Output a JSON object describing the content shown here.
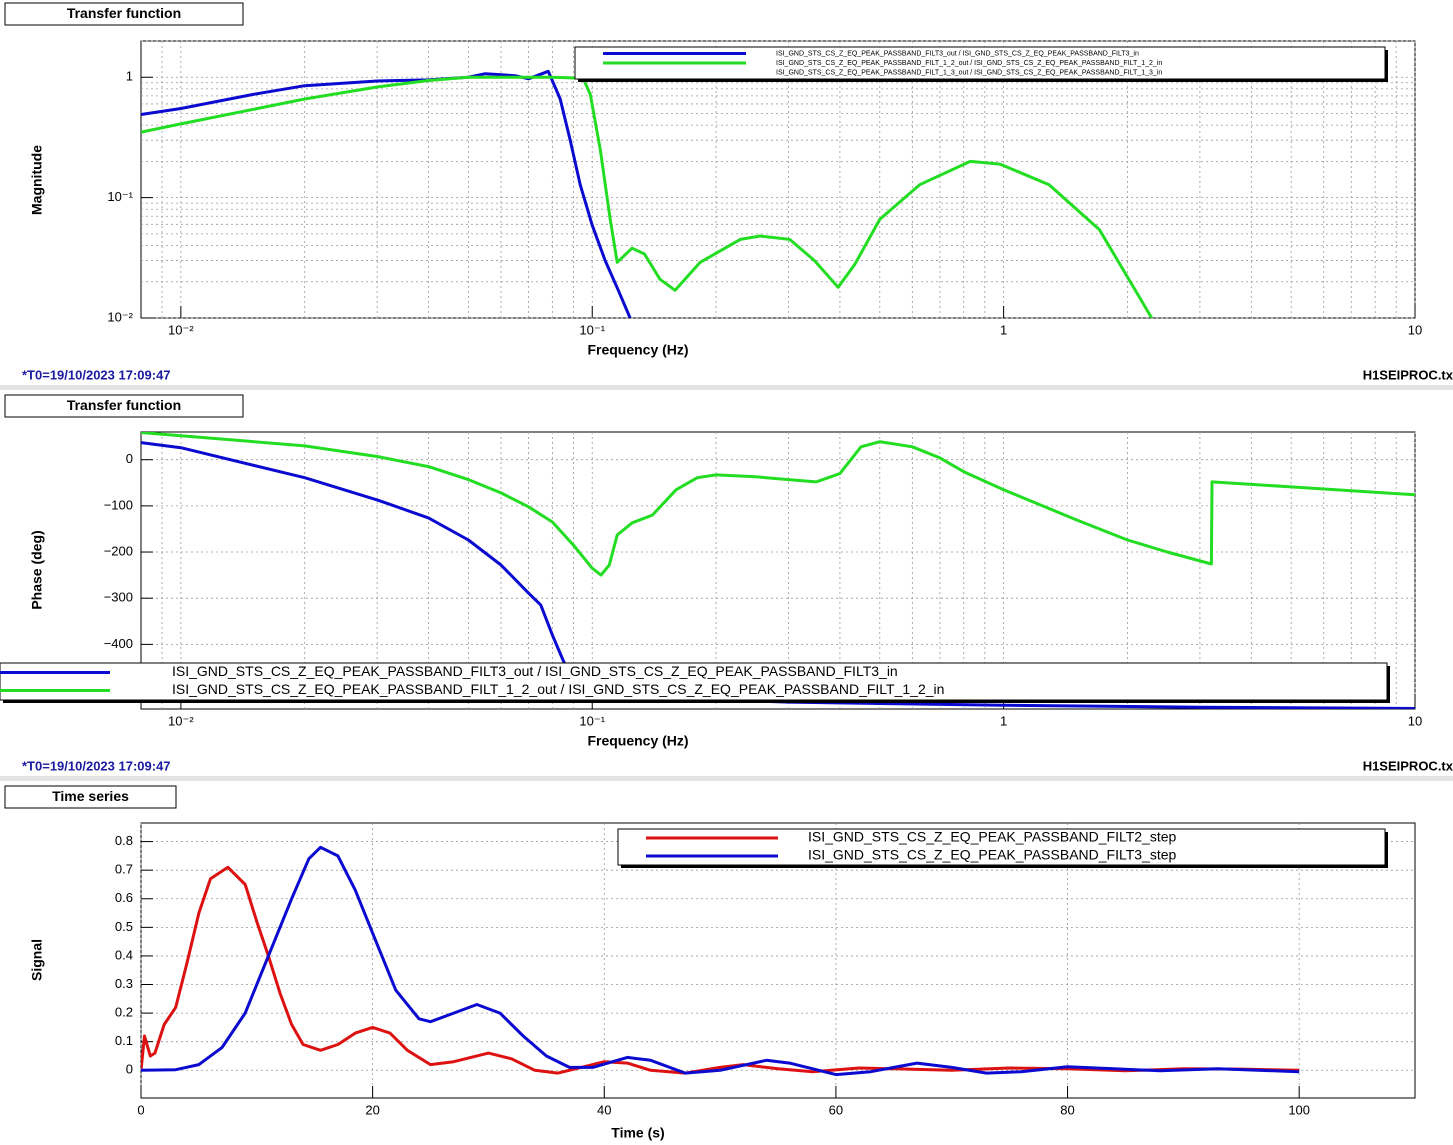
{
  "chart_data": [
    {
      "type": "line",
      "title": "Transfer function",
      "xlabel": "Frequency (Hz)",
      "ylabel": "Magnitude",
      "xscale": "log",
      "yscale": "log",
      "grid": true,
      "legend": "top-right",
      "footer_left": "*T0=19/10/2023 17:09:47",
      "footer_right": "H1SEIPROC.tx",
      "xlim": [
        0.008,
        10
      ],
      "ylim": [
        0.01,
        2
      ],
      "xticks": [
        {
          "value": 0.01,
          "label": "10⁻²"
        },
        {
          "value": 0.1,
          "label": "10⁻¹"
        },
        1,
        10
      ],
      "yticks": [
        {
          "value": 0.01,
          "label": "10⁻²"
        },
        {
          "value": 0.1,
          "label": "10⁻¹"
        },
        1
      ],
      "xminorticks": [
        0.009,
        0.02,
        0.03,
        0.04,
        0.05,
        0.06,
        0.07,
        0.08,
        0.09,
        0.2,
        0.3,
        0.4,
        0.5,
        0.6,
        0.7,
        0.8,
        0.9,
        2,
        3,
        4,
        5,
        6,
        7,
        8,
        9
      ],
      "yminorticks": [
        0.02,
        0.03,
        0.04,
        0.05,
        0.06,
        0.07,
        0.08,
        0.09,
        0.2,
        0.3,
        0.4,
        0.5,
        0.6,
        0.7,
        0.8,
        0.9,
        2
      ],
      "series": [
        {
          "name": "ISI_GND_STS_CS_Z_EQ_PEAK_PASSBAND_FILT3_out / ISI_GND_STS_CS_Z_EQ_PEAK_PASSBAND_FILT3_in",
          "color": "#0a0ad0",
          "x": [
            0.008,
            0.01,
            0.015,
            0.02,
            0.03,
            0.04,
            0.05,
            0.055,
            0.065,
            0.07,
            0.0782,
            0.0836,
            0.0884,
            0.0935,
            0.1,
            0.1075,
            0.1157,
            0.1236
          ],
          "values": [
            0.49,
            0.55,
            0.72,
            0.85,
            0.93,
            0.95,
            1.0,
            1.07,
            1.03,
            0.97,
            1.12,
            0.66,
            0.3,
            0.128,
            0.059,
            0.03,
            0.017,
            0.01
          ]
        },
        {
          "name": "ISI_GND_STS_CS_Z_EQ_PEAK_PASSBAND_FILT_1_2_out / ISI_GND_STS_CS_Z_EQ_PEAK_PASSBAND_FILT_1_2_in",
          "color": "#22dd22",
          "x": [
            0.008,
            0.01,
            0.02,
            0.03,
            0.04,
            0.05,
            0.08,
            0.095,
            0.0989,
            0.1046,
            0.1106,
            0.115,
            0.125,
            0.134,
            0.146,
            0.159,
            0.183,
            0.229,
            0.256,
            0.302,
            0.347,
            0.396,
            0.435,
            0.5,
            0.625,
            0.83,
            0.98,
            1.29,
            1.71,
            2.29
          ],
          "values": [
            0.35,
            0.41,
            0.66,
            0.83,
            0.94,
            1.0,
            1.0,
            0.98,
            0.72,
            0.25,
            0.066,
            0.029,
            0.038,
            0.034,
            0.021,
            0.017,
            0.029,
            0.045,
            0.048,
            0.045,
            0.03,
            0.018,
            0.028,
            0.066,
            0.128,
            0.2,
            0.19,
            0.128,
            0.054,
            0.01
          ]
        },
        {
          "name": "ISI_GND_STS_CS_Z_EQ_PEAK_PASSBAND_FILT_1_3_out / ISI_GND_STS_CS_Z_EQ_PEAK_PASSBAND_FILT_1_3_in",
          "color": "#ffffff",
          "x": [],
          "values": []
        }
      ]
    },
    {
      "type": "line",
      "title": "Transfer function",
      "xlabel": "Frequency (Hz)",
      "ylabel": "Phase (deg)",
      "xscale": "log",
      "yscale": "linear",
      "grid": true,
      "legend": "bottom",
      "footer_left": "*T0=19/10/2023 17:09:47",
      "footer_right": "H1SEIPROC.tx",
      "xlim": [
        0.008,
        10
      ],
      "ylim": [
        -540,
        60
      ],
      "xticks": [
        {
          "value": 0.01,
          "label": "10⁻²"
        },
        {
          "value": 0.1,
          "label": "10⁻¹"
        },
        1,
        10
      ],
      "yticks": [
        0,
        {
          "value": -100,
          "label": "−100"
        },
        {
          "value": -200,
          "label": "−200"
        },
        {
          "value": -300,
          "label": "−300"
        },
        {
          "value": -400,
          "label": "−400"
        }
      ],
      "xminorticks": [
        0.009,
        0.02,
        0.03,
        0.04,
        0.05,
        0.06,
        0.07,
        0.08,
        0.09,
        0.2,
        0.3,
        0.4,
        0.5,
        0.6,
        0.7,
        0.8,
        0.9,
        2,
        3,
        4,
        5,
        6,
        7,
        8,
        9
      ],
      "series": [
        {
          "name": "ISI_GND_STS_CS_Z_EQ_PEAK_PASSBAND_FILT3_out / ISI_GND_STS_CS_Z_EQ_PEAK_PASSBAND_FILT3_in",
          "color": "#0a0ad0",
          "x": [
            0.008,
            0.01,
            0.02,
            0.03,
            0.04,
            0.05,
            0.06,
            0.07,
            0.075,
            0.08,
            0.085,
            0.09,
            0.1,
            0.3,
            0.5,
            1,
            3,
            10
          ],
          "values": [
            37,
            26,
            -39,
            -87,
            -126,
            -174,
            -228,
            -289,
            -315,
            -380,
            -435,
            -478,
            -511,
            -525,
            -528,
            -532,
            -536,
            -539
          ]
        },
        {
          "name": "ISI_GND_STS_CS_Z_EQ_PEAK_PASSBAND_FILT_1_2_out / ISI_GND_STS_CS_Z_EQ_PEAK_PASSBAND_FILT_1_2_in",
          "color": "#22dd22",
          "x": [
            0.008,
            0.01,
            0.02,
            0.03,
            0.04,
            0.05,
            0.06,
            0.07,
            0.08,
            0.09,
            0.1,
            0.105,
            0.11,
            0.115,
            0.125,
            0.14,
            0.16,
            0.18,
            0.2,
            0.25,
            0.3,
            0.35,
            0.4,
            0.45,
            0.5,
            0.6,
            0.7,
            0.8,
            1,
            1.5,
            2,
            2.5,
            3.2,
            3.21,
            5,
            10
          ],
          "values": [
            59,
            52,
            30,
            7,
            -15,
            -43,
            -72,
            -102,
            -135,
            -185,
            -235,
            -250,
            -228,
            -163,
            -137,
            -120,
            -65,
            -39,
            -33,
            -37,
            -43,
            -48,
            -30,
            28,
            39,
            28,
            4,
            -26,
            -65,
            -130,
            -174,
            -200,
            -226,
            -48,
            -59,
            -76
          ]
        }
      ]
    },
    {
      "type": "line",
      "title": "Time series",
      "xlabel": "Time (s)",
      "ylabel": "Signal",
      "xscale": "linear",
      "yscale": "linear",
      "grid": true,
      "legend": "top-right",
      "xlim": [
        0,
        110
      ],
      "ylim": [
        -0.097,
        0.865
      ],
      "xticks": [
        0,
        20,
        40,
        60,
        80,
        100
      ],
      "yticks": [
        0,
        0.1,
        0.2,
        0.3,
        0.4,
        0.5,
        0.6,
        0.7,
        0.8
      ],
      "series": [
        {
          "name": "ISI_GND_STS_CS_Z_EQ_PEAK_PASSBAND_FILT2_step",
          "color": "#dd1111",
          "x": [
            0,
            0.3,
            0.8,
            1.2,
            2,
            3,
            4,
            5,
            6,
            7.5,
            9,
            10,
            11,
            12,
            13,
            14,
            15.5,
            17,
            18.5,
            20,
            21.5,
            23,
            25,
            27,
            30,
            32,
            34,
            36,
            38,
            40,
            42,
            44,
            47,
            50,
            52,
            55,
            58,
            62,
            65,
            70,
            75,
            80,
            85,
            90,
            95,
            100
          ],
          "values": [
            0,
            0.12,
            0.05,
            0.06,
            0.16,
            0.22,
            0.38,
            0.55,
            0.67,
            0.71,
            0.65,
            0.52,
            0.4,
            0.27,
            0.16,
            0.09,
            0.07,
            0.09,
            0.13,
            0.15,
            0.13,
            0.07,
            0.02,
            0.03,
            0.06,
            0.04,
            0.0,
            -0.01,
            0.01,
            0.03,
            0.025,
            0.0,
            -0.01,
            0.01,
            0.02,
            0.005,
            -0.005,
            0.008,
            0.005,
            0.0,
            0.008,
            0.005,
            -0.002,
            0.005,
            0.004,
            0.0
          ]
        },
        {
          "name": "ISI_GND_STS_CS_Z_EQ_PEAK_PASSBAND_FILT3_step",
          "color": "#0a0ad0",
          "x": [
            0,
            3,
            5,
            7,
            9,
            11,
            13,
            14.5,
            15.5,
            17,
            18.5,
            20,
            22,
            24,
            25,
            27,
            29,
            31,
            33,
            35,
            37,
            39,
            42,
            44,
            47,
            50,
            54,
            56,
            60,
            63,
            67,
            70,
            73,
            76,
            80,
            84,
            88,
            93,
            100
          ],
          "values": [
            0,
            0.002,
            0.02,
            0.08,
            0.2,
            0.4,
            0.6,
            0.74,
            0.78,
            0.75,
            0.63,
            0.48,
            0.28,
            0.18,
            0.17,
            0.2,
            0.23,
            0.2,
            0.12,
            0.05,
            0.01,
            0.01,
            0.045,
            0.035,
            -0.01,
            0.0,
            0.035,
            0.025,
            -0.015,
            -0.005,
            0.025,
            0.01,
            -0.01,
            -0.005,
            0.012,
            0.005,
            -0.002,
            0.005,
            -0.005
          ]
        }
      ]
    }
  ]
}
